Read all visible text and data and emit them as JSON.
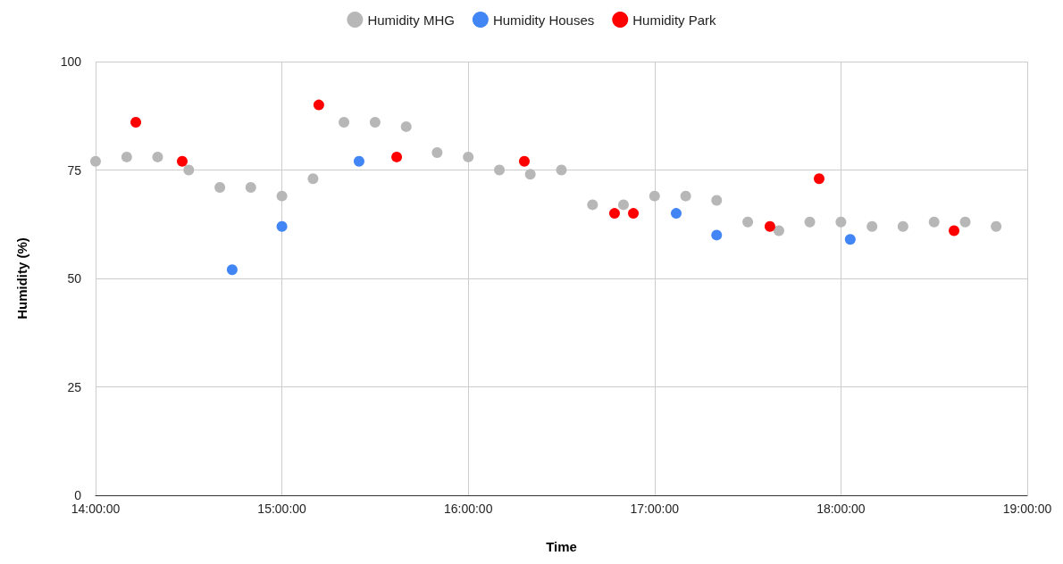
{
  "chart_data": {
    "type": "scatter",
    "xlabel": "Time",
    "ylabel": "Humidity (%)",
    "xlim": [
      14,
      19
    ],
    "xticks": [
      {
        "value": 14,
        "label": "14:00:00"
      },
      {
        "value": 15,
        "label": "15:00:00"
      },
      {
        "value": 16,
        "label": "16:00:00"
      },
      {
        "value": 17,
        "label": "17:00:00"
      },
      {
        "value": 18,
        "label": "18:00:00"
      },
      {
        "value": 19,
        "label": "19:00:00"
      }
    ],
    "ylim": [
      0,
      100
    ],
    "yticks": [
      0,
      25,
      50,
      75,
      100
    ],
    "grid": true,
    "legend": "top",
    "marker": "circle",
    "series": [
      {
        "name": "Humidity MHG",
        "color": "#b7b7b7",
        "x": [
          14,
          14.167,
          14.333,
          14.5,
          14.667,
          14.833,
          15,
          15.167,
          15.333,
          15.5,
          15.667,
          15.833,
          16,
          16.167,
          16.333,
          16.5,
          16.667,
          16.833,
          17,
          17.167,
          17.333,
          17.5,
          17.667,
          17.833,
          18,
          18.167,
          18.333,
          18.5,
          18.667,
          18.833
        ],
        "values": [
          77,
          78,
          78,
          75,
          71,
          71,
          69,
          73,
          86,
          86,
          85,
          79,
          78,
          75,
          74,
          75,
          67,
          67,
          69,
          69,
          68,
          63,
          61,
          63,
          63,
          62,
          62,
          63,
          63,
          62
        ]
      },
      {
        "name": "Humidity Houses",
        "color": "#4285f4",
        "x": [
          14.733,
          15,
          15.414,
          17.116,
          17.333,
          18.05
        ],
        "values": [
          52,
          62,
          77,
          65,
          60,
          59
        ]
      },
      {
        "name": "Humidity Park",
        "color": "#ff0000",
        "x": [
          14.216,
          14.465,
          15.198,
          15.616,
          16.301,
          16.785,
          16.886,
          17.619,
          17.883,
          18.607
        ],
        "values": [
          86,
          77,
          90,
          78,
          77,
          65,
          65,
          62,
          73,
          61
        ]
      }
    ]
  }
}
